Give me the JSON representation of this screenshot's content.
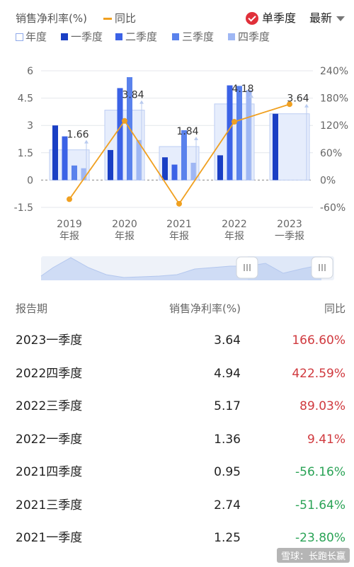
{
  "header": {
    "metric_label": "销售净利率(%)",
    "yoy_label": "同比",
    "single_quarter_label": "单季度",
    "sort_label": "最新"
  },
  "legend": [
    {
      "label": "年度",
      "color": "#dce6fb"
    },
    {
      "label": "一季度",
      "color": "#1a3fc4"
    },
    {
      "label": "二季度",
      "color": "#3b62e6"
    },
    {
      "label": "三季度",
      "color": "#5a82ec"
    },
    {
      "label": "四季度",
      "color": "#9fb7f4"
    }
  ],
  "chart_data": {
    "type": "bar",
    "categories": [
      {
        "line1": "2019",
        "line2": "年报"
      },
      {
        "line1": "2020",
        "line2": "年报"
      },
      {
        "line1": "2021",
        "line2": "年报"
      },
      {
        "line1": "2022",
        "line2": "年报"
      },
      {
        "line1": "2023",
        "line2": "一季报"
      }
    ],
    "annual": [
      1.66,
      3.84,
      1.84,
      4.18,
      3.64
    ],
    "quarters": [
      [
        3.0,
        2.4,
        0.8,
        0.65
      ],
      [
        1.65,
        5.05,
        5.65,
        2.2
      ],
      [
        1.25,
        0.85,
        2.74,
        0.95
      ],
      [
        1.36,
        5.2,
        5.17,
        4.94
      ],
      [
        3.64,
        null,
        null,
        null
      ]
    ],
    "yoy": [
      -42,
      130,
      -52,
      128,
      166.6
    ],
    "y_left": {
      "ticks": [
        "6",
        "4.5",
        "3",
        "1.5",
        "0",
        "-1.5"
      ],
      "values": [
        6,
        4.5,
        3,
        1.5,
        0,
        -1.5
      ],
      "range": [
        -1.5,
        6
      ]
    },
    "y_right": {
      "ticks": [
        "240%",
        "180%",
        "120%",
        "60%",
        "0%",
        "-60%"
      ],
      "values": [
        240,
        180,
        120,
        60,
        0,
        -60
      ],
      "range": [
        -60,
        240
      ]
    },
    "colors": {
      "annual_fill": "#e6edfc",
      "annual_stroke": "#bccdf3",
      "q1": "#1a3fc4",
      "q2": "#3b62e6",
      "q3": "#5a82ec",
      "q4": "#9fb7f4",
      "yoy_line": "#f0a020"
    }
  },
  "table": {
    "headers": {
      "period": "报告期",
      "metric": "销售净利率(%)",
      "yoy": "同比"
    },
    "rows": [
      {
        "period": "2023一季度",
        "value": "3.64",
        "yoy": "166.60%",
        "sign": "pos"
      },
      {
        "period": "2022四季度",
        "value": "4.94",
        "yoy": "422.59%",
        "sign": "pos"
      },
      {
        "period": "2022三季度",
        "value": "5.17",
        "yoy": "89.03%",
        "sign": "pos"
      },
      {
        "period": "2022一季度",
        "value": "1.36",
        "yoy": "9.41%",
        "sign": "pos"
      },
      {
        "period": "2021四季度",
        "value": "0.95",
        "yoy": "-56.16%",
        "sign": "neg"
      },
      {
        "period": "2021三季度",
        "value": "2.74",
        "yoy": "-51.64%",
        "sign": "neg"
      },
      {
        "period": "2021一季度",
        "value": "1.25",
        "yoy": "-23.80%",
        "sign": "neg"
      }
    ]
  },
  "watermark": "雪球：长跑长赢"
}
